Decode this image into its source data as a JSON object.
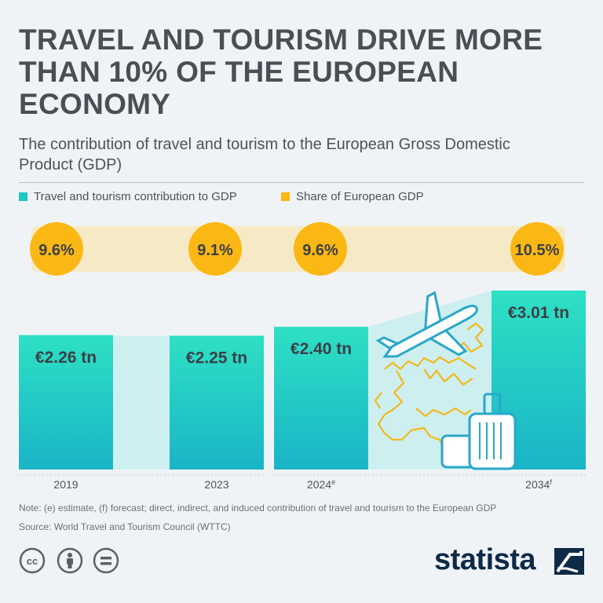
{
  "title": "TRAVEL AND TOURISM DRIVE MORE THAN 10% OF THE EUROPEAN ECONOMY",
  "subtitle": "The contribution of travel and tourism to the European Gross Domestic Product (GDP)",
  "legend": [
    {
      "label": "Travel and tourism contribution to GDP",
      "color": "#1ec6c0"
    },
    {
      "label": "Share of European GDP",
      "color": "#fbb714"
    }
  ],
  "chart_data": {
    "type": "bar",
    "categories": [
      "2019",
      "2023",
      "2024",
      "2034"
    ],
    "category_suffixes": [
      "",
      "",
      "e",
      "f"
    ],
    "series": [
      {
        "name": "Travel and tourism contribution to GDP",
        "values": [
          2.26,
          2.25,
          2.4,
          3.01
        ],
        "value_labels": [
          "€2.26 tn",
          "€2.25 tn",
          "€2.40 tn",
          "€3.01 tn"
        ]
      },
      {
        "name": "Share of European GDP",
        "values": [
          9.6,
          9.1,
          9.6,
          10.5
        ],
        "value_labels": [
          "9.6%",
          "9.1%",
          "9.6%",
          "10.5%"
        ]
      }
    ],
    "colors": {
      "bar_top": "#2ee0c4",
      "bar_bottom": "#1ab4c6",
      "share": "#fbb714",
      "share_band": "#f6e9c6",
      "gap_fill": "#cdeff0"
    }
  },
  "footer": {
    "note": "Note: (e) estimate, (f) forecast; direct, indirect, and induced contribution of travel and tourism to the European GDP",
    "source": "Source: World Travel and Tourism Council (WTTC)",
    "icons": [
      "cc-icon",
      "by-icon",
      "nd-icon"
    ],
    "brand": "statista"
  }
}
